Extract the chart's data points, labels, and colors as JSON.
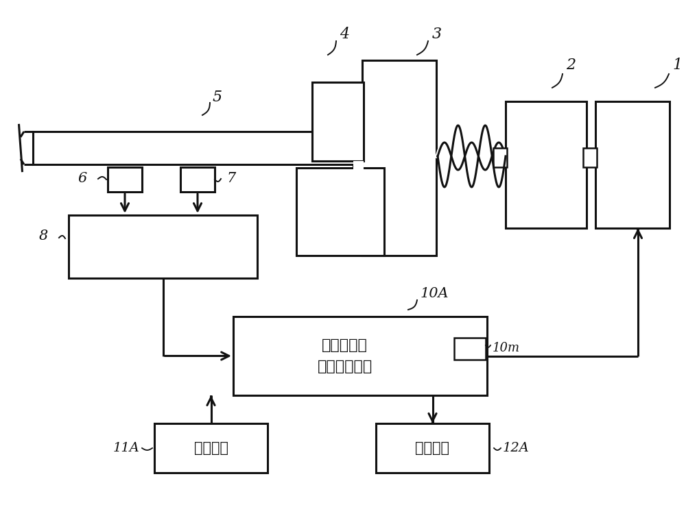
{
  "bg": "#ffffff",
  "ec": "#111111",
  "lw": 2.2,
  "text_10A": "测试模式用\n信号处理装置",
  "text_11A": "输入装置",
  "text_12A": "显示装置",
  "label_1": "1",
  "label_2": "2",
  "label_3": "3",
  "label_4": "4",
  "label_5": "5",
  "label_6": "6",
  "label_7": "7",
  "label_8": "8",
  "label_10A": "10A",
  "label_10m": "10m",
  "label_11A": "11A",
  "label_12A": "12A"
}
